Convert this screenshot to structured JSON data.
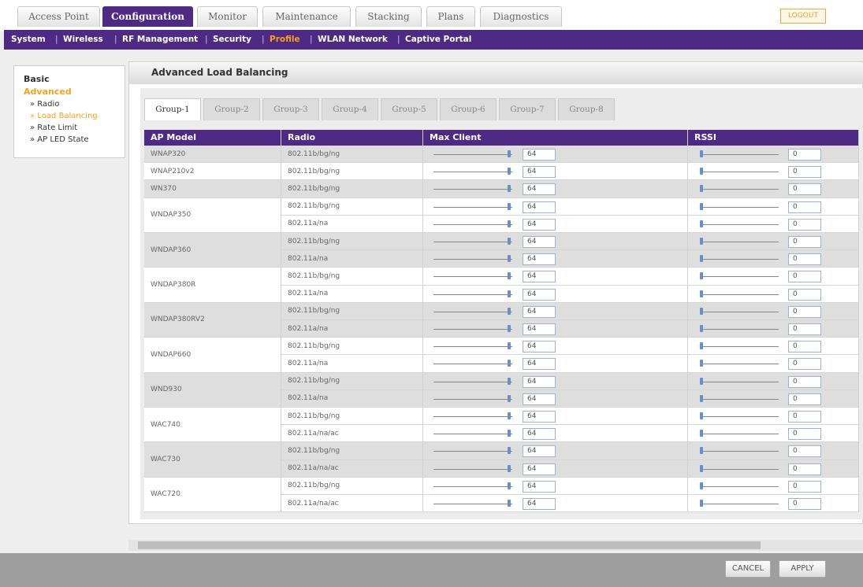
{
  "top_tabs": [
    "Access Point",
    "Configuration",
    "Monitor",
    "Maintenance",
    "Stacking",
    "Plans",
    "Diagnostics"
  ],
  "active_top_tab": "Configuration",
  "logout": "LOGOUT",
  "sub_nav": [
    "System",
    "Wireless",
    "RF Management",
    "Security",
    "Profile",
    "WLAN Network",
    "Captive Portal"
  ],
  "active_sub_nav": "Profile",
  "sidebar": {
    "basic": "Basic",
    "advanced": "Advanced",
    "items": [
      "» Radio",
      "» Load Balancing",
      "» Rate Limit",
      "» AP LED State"
    ],
    "active_item": "» Load Balancing"
  },
  "panel_title": "Advanced Load Balancing",
  "group_tabs": [
    "Group-1",
    "Group-2",
    "Group-3",
    "Group-4",
    "Group-5",
    "Group-6",
    "Group-7",
    "Group-8"
  ],
  "table": {
    "headers": [
      "AP Model",
      "Radio",
      "Max Client",
      "RSSI"
    ],
    "rows": [
      {
        "model": "WNAP320",
        "radios": [
          {
            "radio": "802.11b/bg/ng",
            "max_client": 64,
            "rssi": 0
          }
        ]
      },
      {
        "model": "WNAP210v2",
        "radios": [
          {
            "radio": "802.11b/bg/ng",
            "max_client": 64,
            "rssi": 0
          }
        ]
      },
      {
        "model": "WN370",
        "radios": [
          {
            "radio": "802.11b/bg/ng",
            "max_client": 64,
            "rssi": 0
          }
        ]
      },
      {
        "model": "WNDAP350",
        "radios": [
          {
            "radio": "802.11b/bg/ng",
            "max_client": 64,
            "rssi": 0
          },
          {
            "radio": "802.11a/na",
            "max_client": 64,
            "rssi": 0
          }
        ]
      },
      {
        "model": "WNDAP360",
        "radios": [
          {
            "radio": "802.11b/bg/ng",
            "max_client": 64,
            "rssi": 0
          },
          {
            "radio": "802.11a/na",
            "max_client": 64,
            "rssi": 0
          }
        ]
      },
      {
        "model": "WNDAP380R",
        "radios": [
          {
            "radio": "802.11b/bg/ng",
            "max_client": 64,
            "rssi": 0
          },
          {
            "radio": "802.11a/na",
            "max_client": 64,
            "rssi": 0
          }
        ]
      },
      {
        "model": "WNDAP380RV2",
        "radios": [
          {
            "radio": "802.11b/bg/ng",
            "max_client": 64,
            "rssi": 0
          },
          {
            "radio": "802.11a/na",
            "max_client": 64,
            "rssi": 0
          }
        ]
      },
      {
        "model": "WNDAP660",
        "radios": [
          {
            "radio": "802.11b/bg/ng",
            "max_client": 64,
            "rssi": 0
          },
          {
            "radio": "802.11a/na",
            "max_client": 64,
            "rssi": 0
          }
        ]
      },
      {
        "model": "WND930",
        "radios": [
          {
            "radio": "802.11b/bg/ng",
            "max_client": 64,
            "rssi": 0
          },
          {
            "radio": "802.11a/na",
            "max_client": 64,
            "rssi": 0
          }
        ]
      },
      {
        "model": "WAC740",
        "radios": [
          {
            "radio": "802.11b/bg/ng",
            "max_client": 64,
            "rssi": 0
          },
          {
            "radio": "802.11a/na/ac",
            "max_client": 64,
            "rssi": 0
          }
        ]
      },
      {
        "model": "WAC730",
        "radios": [
          {
            "radio": "802.11b/bg/ng",
            "max_client": 64,
            "rssi": 0
          },
          {
            "radio": "802.11a/na/ac",
            "max_client": 64,
            "rssi": 0
          }
        ]
      },
      {
        "model": "WAC720",
        "radios": [
          {
            "radio": "802.11b/bg/ng",
            "max_client": 64,
            "rssi": 0
          },
          {
            "radio": "802.11a/na/ac",
            "max_client": 64,
            "rssi": 0
          }
        ]
      }
    ]
  },
  "buttons": {
    "cancel": "CANCEL",
    "apply": "APPLY"
  }
}
